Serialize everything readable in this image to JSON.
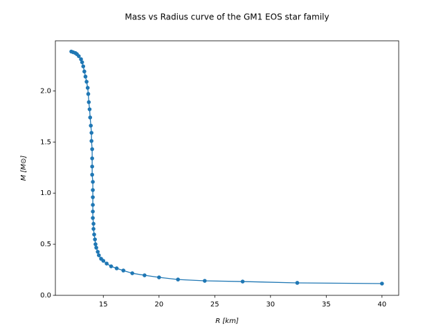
{
  "chart_data": {
    "type": "line",
    "title": "Mass vs Radius curve of the GM1 EOS star family",
    "x_label": "R [km]",
    "y_label": "M [M⊙]",
    "xlim": [
      10.7,
      41.5
    ],
    "ylim": [
      0,
      2.49
    ],
    "xticks": [
      15,
      20,
      25,
      30,
      35,
      40
    ],
    "yticks": [
      {
        "value": 0,
        "label": "0.0"
      },
      0.5,
      {
        "value": 1,
        "label": "1.0"
      },
      1.5,
      {
        "value": 2,
        "label": "2.0"
      }
    ],
    "series": [
      {
        "color": "#1f77b4",
        "x": [
          12.13,
          12.3,
          12.5,
          12.63,
          12.8,
          13.0,
          13.1,
          13.2,
          13.3,
          13.4,
          13.5,
          13.6,
          13.65,
          13.7,
          13.77,
          13.82,
          13.88,
          13.94,
          13.94,
          14.0,
          14.0,
          14.0,
          14.0,
          14.06,
          14.06,
          14.06,
          14.06,
          14.06,
          14.06,
          14.12,
          14.12,
          14.18,
          14.25,
          14.3,
          14.37,
          14.5,
          14.6,
          14.8,
          15.0,
          15.3,
          15.7,
          16.2,
          16.8,
          17.6,
          18.7,
          20.0,
          21.7,
          24.1,
          27.5,
          32.4,
          40.0
        ],
        "values": [
          2.385,
          2.378,
          2.37,
          2.36,
          2.34,
          2.31,
          2.28,
          2.24,
          2.19,
          2.14,
          2.09,
          2.03,
          1.97,
          1.89,
          1.82,
          1.74,
          1.66,
          1.59,
          1.51,
          1.43,
          1.34,
          1.26,
          1.18,
          1.11,
          1.03,
          0.96,
          0.885,
          0.82,
          0.757,
          0.7,
          0.65,
          0.595,
          0.547,
          0.5,
          0.466,
          0.426,
          0.392,
          0.358,
          0.338,
          0.311,
          0.284,
          0.264,
          0.243,
          0.216,
          0.196,
          0.176,
          0.155,
          0.142,
          0.135,
          0.122,
          0.115
        ]
      }
    ]
  }
}
